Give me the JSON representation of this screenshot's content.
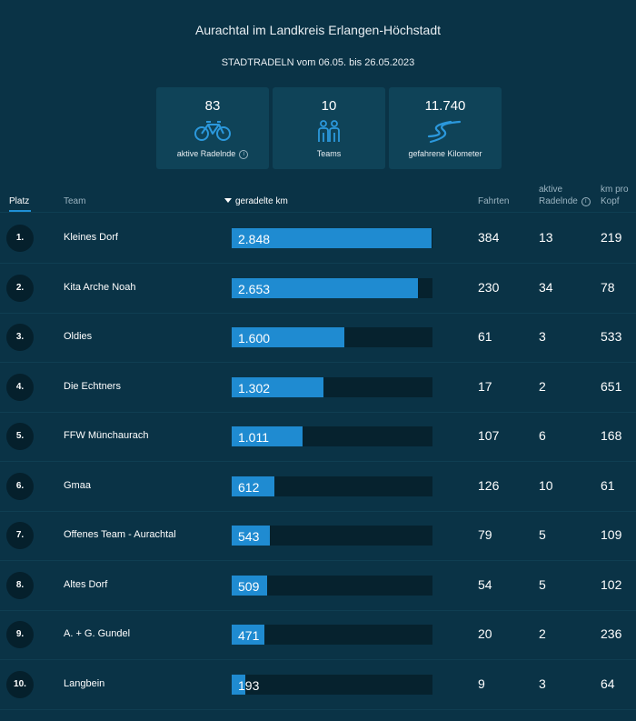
{
  "title": "Aurachtal im Landkreis Erlangen-Höchstadt",
  "subtitle": "STADTRADELN vom 06.05. bis 26.05.2023",
  "stats": [
    {
      "value": "83",
      "label": "aktive Radelnde",
      "icon": "bicycle-icon",
      "info": "i"
    },
    {
      "value": "10",
      "label": "Teams",
      "icon": "team-people-icon"
    },
    {
      "value": "11.740",
      "label": "gefahrene Kilometer",
      "icon": "road-icon"
    }
  ],
  "headers": {
    "platz": "Platz",
    "team": "Team",
    "km": "geradelte km",
    "fahrten": "Fahrten",
    "aktive_line1": "aktive",
    "aktive_line2": "Radelnde",
    "kopf_line1": "km pro",
    "kopf_line2": "Kopf",
    "info": "i"
  },
  "colors": {
    "background": "#0a3346",
    "accent": "#1f8bd1",
    "card": "#0f4358",
    "track": "#06222e"
  },
  "rows": [
    {
      "rank": "1.",
      "team": "Kleines Dorf",
      "km": "2.848",
      "km_value": 2848,
      "fahrten": "384",
      "aktive": "13",
      "kopf": "219"
    },
    {
      "rank": "2.",
      "team": "Kita Arche Noah",
      "km": "2.653",
      "km_value": 2653,
      "fahrten": "230",
      "aktive": "34",
      "kopf": "78"
    },
    {
      "rank": "3.",
      "team": "Oldies",
      "km": "1.600",
      "km_value": 1600,
      "fahrten": "61",
      "aktive": "3",
      "kopf": "533"
    },
    {
      "rank": "4.",
      "team": "Die Echtners",
      "km": "1.302",
      "km_value": 1302,
      "fahrten": "17",
      "aktive": "2",
      "kopf": "651"
    },
    {
      "rank": "5.",
      "team": "FFW Münchaurach",
      "km": "1.011",
      "km_value": 1011,
      "fahrten": "107",
      "aktive": "6",
      "kopf": "168"
    },
    {
      "rank": "6.",
      "team": "Gmaa",
      "km": "612",
      "km_value": 612,
      "fahrten": "126",
      "aktive": "10",
      "kopf": "61"
    },
    {
      "rank": "7.",
      "team": "Offenes Team - Aurachtal",
      "km": "543",
      "km_value": 543,
      "fahrten": "79",
      "aktive": "5",
      "kopf": "109"
    },
    {
      "rank": "8.",
      "team": "Altes Dorf",
      "km": "509",
      "km_value": 509,
      "fahrten": "54",
      "aktive": "5",
      "kopf": "102"
    },
    {
      "rank": "9.",
      "team": "A. + G. Gundel",
      "km": "471",
      "km_value": 471,
      "fahrten": "20",
      "aktive": "2",
      "kopf": "236"
    },
    {
      "rank": "10.",
      "team": "Langbein",
      "km": "193",
      "km_value": 193,
      "fahrten": "9",
      "aktive": "3",
      "kopf": "64"
    }
  ]
}
